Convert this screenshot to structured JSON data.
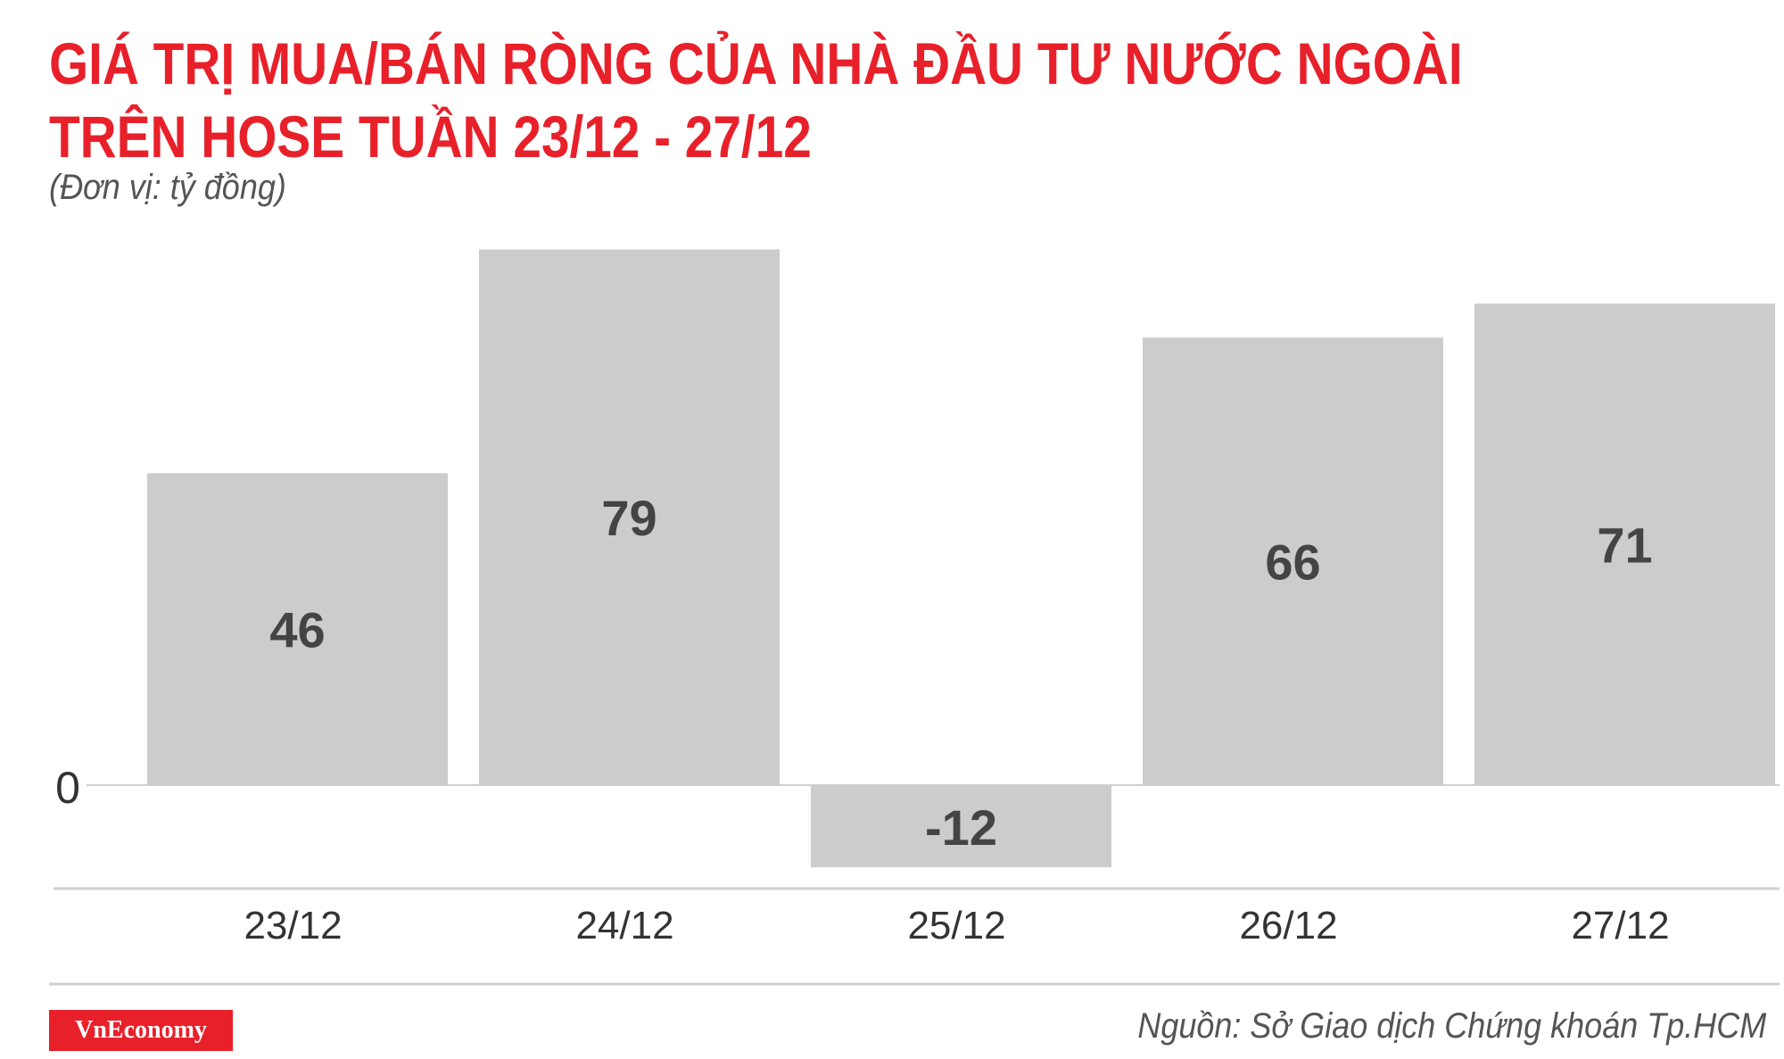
{
  "title": {
    "line1": "GIÁ TRỊ MUA/BÁN RÒNG CỦA NHÀ ĐẦU TƯ NƯỚC NGOÀI",
    "line2": "TRÊN HOSE TUẦN 23/12 - 27/12"
  },
  "unit_label": "(Đơn vị: tỷ đồng)",
  "brand": "VnEconomy",
  "source": "Nguồn: Sở Giao dịch Chứng khoán Tp.HCM",
  "colors": {
    "title": "#e8202a",
    "bar": "#cccccc",
    "value_label": "#444444",
    "axis": "#cfcfcf",
    "brand_bg": "#e8202a"
  },
  "chart_data": {
    "type": "bar",
    "categories": [
      "23/12",
      "24/12",
      "25/12",
      "26/12",
      "27/12"
    ],
    "values": [
      46,
      79,
      -12,
      66,
      71
    ],
    "ylim": [
      -16,
      80
    ],
    "y_tick_labels": [
      "0"
    ],
    "grid": false,
    "legend": "none"
  }
}
